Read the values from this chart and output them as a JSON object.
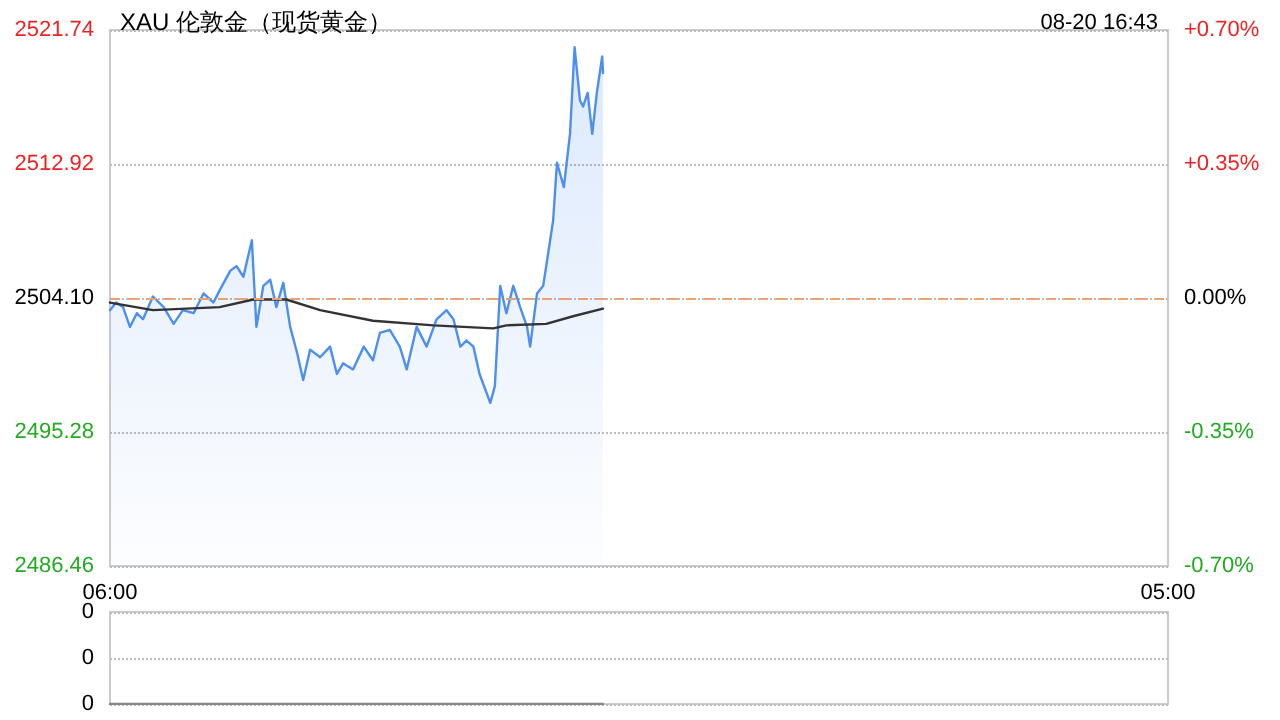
{
  "chart_data": [
    {
      "type": "line",
      "title": "XAU 伦敦金（现货黄金）",
      "annotations": [
        "08-20 16:43"
      ],
      "xlim": [
        "--08-20T06:00",
        "--08-21T05:00"
      ],
      "xticks": [
        {
          "value": "--08-20T06:00",
          "label": "06:00"
        },
        {
          "value": "--08-21T05:00",
          "label": "05:00"
        }
      ],
      "ylim": [
        2486.46,
        2521.74
      ],
      "yticks": [
        2486.46,
        2495.28,
        {
          "value": 2504.1,
          "label": "2504.10"
        },
        2512.92,
        2521.74
      ],
      "y2lim": [
        -0.7,
        0.7
      ],
      "y2ticks": [
        {
          "value": -0.7,
          "label": "-0.70%"
        },
        {
          "value": -0.35,
          "label": "-0.35%"
        },
        {
          "value": 0,
          "label": "0.00%"
        },
        {
          "value": 0.35,
          "label": "+0.35%"
        },
        {
          "value": 0.7,
          "label": "+0.70%"
        }
      ],
      "grid": "y",
      "marker": "none",
      "line_style": "solid",
      "ref_lines": [
        {
          "axis": "y",
          "value": 2504.1,
          "color": "#f0a070",
          "line_style": "dashed"
        }
      ],
      "series": [
        {
          "type": "area",
          "color": "#4d8ff0",
          "x": [
            "--08-20T06:00",
            "--08-20T06:08",
            "--08-20T06:17",
            "--08-20T06:26",
            "--08-20T06:35",
            "--08-20T06:43",
            "--08-20T06:56",
            "--08-20T07:10",
            "--08-20T07:23",
            "--08-20T07:35",
            "--08-20T07:49",
            "--08-20T08:02",
            "--08-20T08:15",
            "--08-20T08:23",
            "--08-20T08:37",
            "--08-20T08:45",
            "--08-20T08:54",
            "--08-20T09:05",
            "--08-20T09:11",
            "--08-20T09:20",
            "--08-20T09:29",
            "--08-20T09:37",
            "--08-20T09:46",
            "--08-20T09:55",
            "--08-20T10:04",
            "--08-20T10:12",
            "--08-20T10:21",
            "--08-20T10:34",
            "--08-20T10:47",
            "--08-20T10:56",
            "--08-20T11:04",
            "--08-20T11:17",
            "--08-20T11:31",
            "--08-20T11:43",
            "--08-20T11:52",
            "--08-20T12:05",
            "--08-20T12:18",
            "--08-20T12:27",
            "--08-20T12:40",
            "--08-20T12:53",
            "--08-20T13:06",
            "--08-20T13:19",
            "--08-20T13:28",
            "--08-20T13:37",
            "--08-20T13:45",
            "--08-20T13:54",
            "--08-20T14:02",
            "--08-20T14:16",
            "--08-20T14:22",
            "--08-20T14:29",
            "--08-20T14:37",
            "--08-20T14:46",
            "--08-20T14:55",
            "--08-20T15:04",
            "--08-20T15:08",
            "--08-20T15:17",
            "--08-20T15:25",
            "--08-20T15:29",
            "--08-20T15:38",
            "--08-20T15:43",
            "--08-20T15:52",
            "--08-20T16:00",
            "--08-20T16:06",
            "--08-20T16:13",
            "--08-20T16:17",
            "--08-20T16:23",
            "--08-20T16:29",
            "--08-20T16:35",
            "--08-20T16:42",
            "--08-20T16:43"
          ],
          "values": [
            2503.3,
            2503.8,
            2503.5,
            2502.2,
            2503.1,
            2502.7,
            2504.2,
            2503.5,
            2502.4,
            2503.3,
            2503.1,
            2504.4,
            2503.8,
            2504.6,
            2505.9,
            2506.2,
            2505.5,
            2507.9,
            2502.2,
            2504.9,
            2505.3,
            2503.5,
            2505.1,
            2502.2,
            2500.5,
            2498.7,
            2500.7,
            2500.2,
            2500.9,
            2499.1,
            2499.8,
            2499.4,
            2500.9,
            2500.0,
            2501.8,
            2502.0,
            2500.9,
            2499.4,
            2502.2,
            2500.9,
            2502.7,
            2503.3,
            2502.7,
            2500.9,
            2501.3,
            2500.9,
            2499.1,
            2497.2,
            2498.3,
            2504.9,
            2503.1,
            2504.9,
            2503.5,
            2502.2,
            2500.9,
            2504.4,
            2504.9,
            2506.2,
            2509.2,
            2513.0,
            2511.4,
            2514.9,
            2520.6,
            2517.1,
            2516.7,
            2517.6,
            2514.9,
            2517.6,
            2520.0,
            2518.9
          ]
        },
        {
          "type": "line",
          "color": "#333333",
          "x": [
            "--08-20T06:00",
            "--08-20T06:56",
            "--08-20T08:23",
            "--08-20T09:07",
            "--08-20T09:50",
            "--08-20T10:34",
            "--08-20T11:43",
            "--08-20T13:02",
            "--08-20T14:20",
            "--08-20T14:37",
            "--08-20T15:29",
            "--08-20T16:04",
            "--08-20T16:43"
          ],
          "values": [
            2503.8,
            2503.3,
            2503.5,
            2504.0,
            2504.0,
            2503.3,
            2502.6,
            2502.3,
            2502.1,
            2502.3,
            2502.4,
            2502.9,
            2503.4
          ]
        }
      ]
    },
    {
      "type": "line",
      "xlim": [
        "--08-20T06:00",
        "--08-21T05:00"
      ],
      "tick_labels": "y",
      "ylim": [
        0,
        0.4
      ],
      "yticks": [
        0,
        {
          "value": 0.2,
          "label": "0"
        },
        {
          "value": 0.4,
          "label": "0"
        }
      ],
      "grid": "y",
      "marker": "none",
      "series": [
        {
          "color": "#888888",
          "x": [
            "--08-20T06:00",
            "--08-20T16:43"
          ],
          "values": [
            0,
            0
          ]
        }
      ]
    }
  ]
}
